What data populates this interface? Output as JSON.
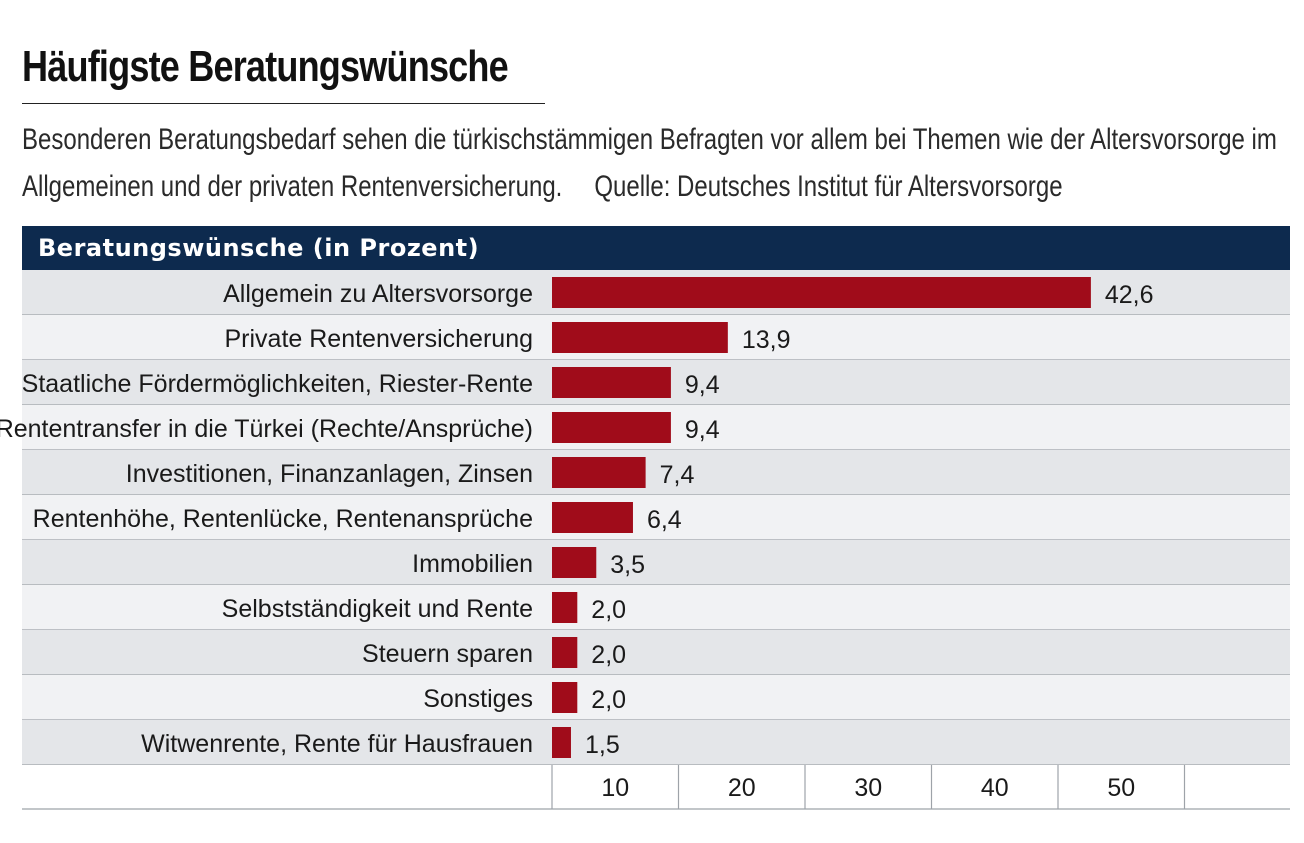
{
  "title": "Häufigste Beratungswünsche",
  "subtitle_line1": "Besonderen Beratungsbedarf sehen die türkischstämmigen Befragten vor allem bei Themen wie der Altersvorsorge im",
  "subtitle_line2": "Allgemeinen und der privaten Rentenversicherung.",
  "source": "Quelle: Deutsches Institut für Altersvorsorge",
  "colors": {
    "header_bg": "#0d2a4e",
    "bar": "#a00c1a",
    "row_even": "#e4e6e9",
    "row_odd": "#f1f2f4",
    "row_line": "#9ea3a9"
  },
  "chart_data": {
    "type": "bar",
    "orientation": "horizontal",
    "header": "Beratungswünsche (in Prozent)",
    "categories": [
      "Allgemein zu Altersvorsorge",
      "Private Rentenversicherung",
      "Staatliche Fördermöglichkeiten, Riester-Rente",
      "Rententransfer in die Türkei (Rechte/Ansprüche)",
      "Investitionen, Finanzanlagen, Zinsen",
      "Rentenhöhe, Rentenlücke, Rentenansprüche",
      "Immobilien",
      "Selbstständigkeit und Rente",
      "Steuern sparen",
      "Sonstiges",
      "Witwenrente, Rente für Hausfrauen"
    ],
    "values": [
      42.6,
      13.9,
      9.4,
      9.4,
      7.4,
      6.4,
      3.5,
      2.0,
      2.0,
      2.0,
      1.5
    ],
    "value_labels": [
      "42,6",
      "13,9",
      "9,4",
      "9,4",
      "7,4",
      "6,4",
      "3,5",
      "2,0",
      "2,0",
      "2,0",
      "1,5"
    ],
    "xlim": [
      0,
      58.5
    ],
    "ticks": [
      10,
      20,
      30,
      40,
      50
    ],
    "tick_labels": [
      "10",
      "20",
      "30",
      "40",
      "50"
    ],
    "grid": false
  }
}
